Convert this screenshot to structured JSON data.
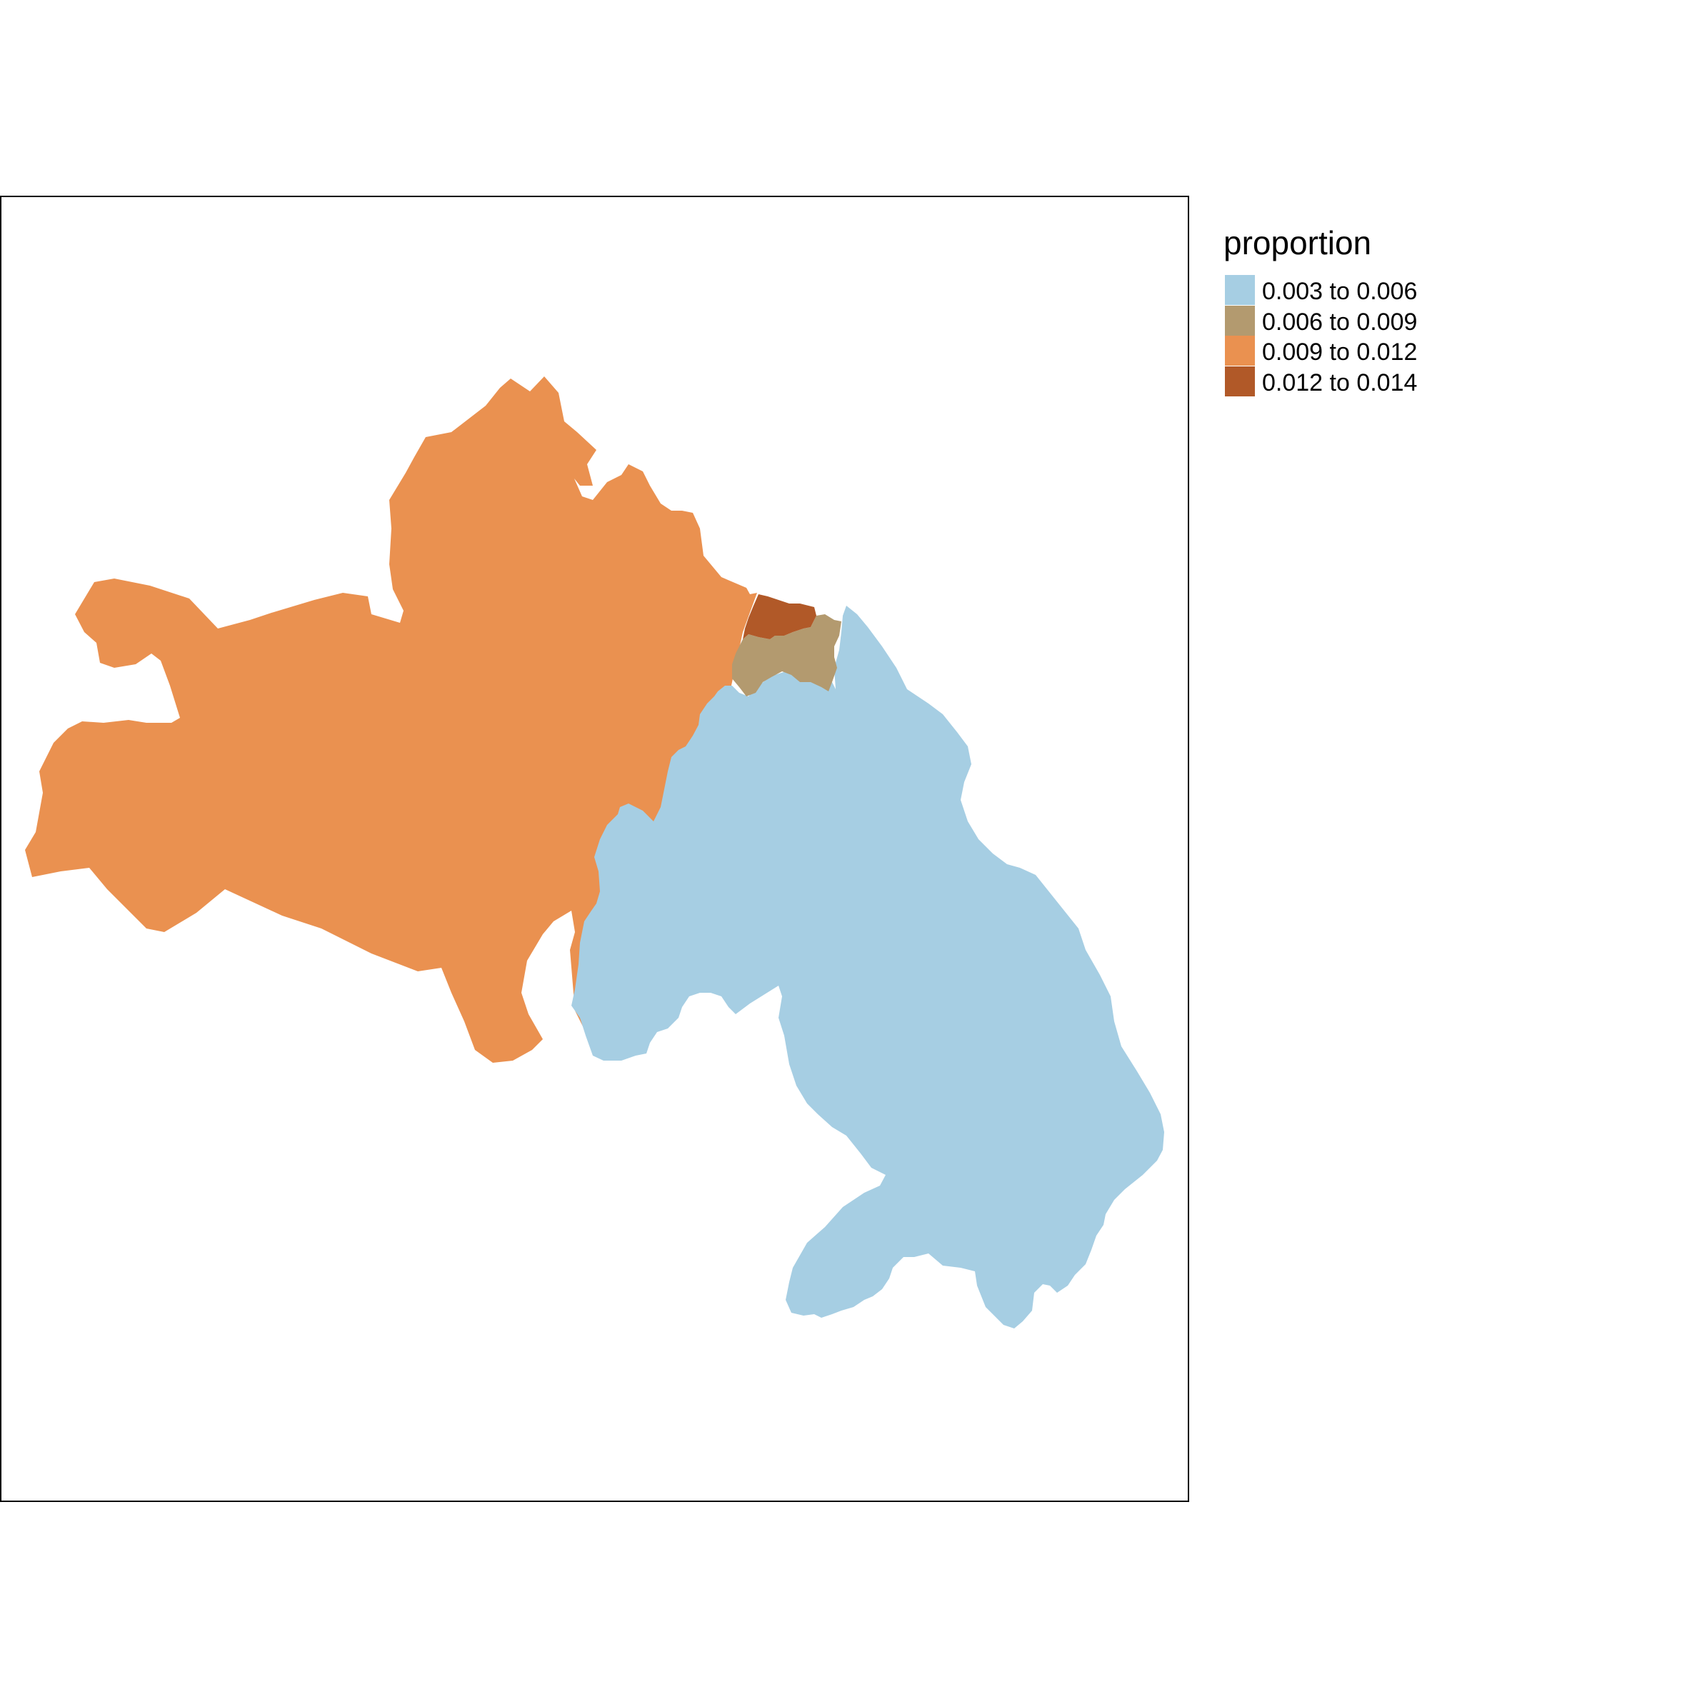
{
  "map": {
    "regions": [
      {
        "id": "west",
        "value_class": 2
      },
      {
        "id": "south-east",
        "value_class": 0
      },
      {
        "id": "north-small",
        "value_class": 1
      },
      {
        "id": "north-tiny",
        "value_class": 3
      }
    ]
  },
  "legend": {
    "title": "proportion",
    "items": [
      {
        "label": "0.003 to 0.006",
        "color": "#a6cee3"
      },
      {
        "label": "0.006 to 0.009",
        "color": "#b39a6f"
      },
      {
        "label": "0.009 to 0.012",
        "color": "#ea9150"
      },
      {
        "label": "0.012 to 0.014",
        "color": "#b15928"
      }
    ]
  }
}
